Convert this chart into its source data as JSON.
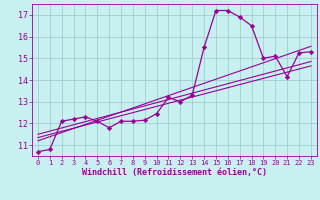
{
  "background_color": "#c8f0f0",
  "grid_color": "#a0cece",
  "line_color": "#990099",
  "marker_color": "#990099",
  "xlabel": "Windchill (Refroidissement éolien,°C)",
  "xlim": [
    -0.5,
    23.5
  ],
  "ylim": [
    10.5,
    17.5
  ],
  "yticks": [
    11,
    12,
    13,
    14,
    15,
    16,
    17
  ],
  "xticks": [
    0,
    1,
    2,
    3,
    4,
    5,
    6,
    7,
    8,
    9,
    10,
    11,
    12,
    13,
    14,
    15,
    16,
    17,
    18,
    19,
    20,
    21,
    22,
    23
  ],
  "curve1_x": [
    0,
    1,
    2,
    3,
    4,
    5,
    6,
    7,
    8,
    9,
    10,
    11,
    12,
    13,
    14,
    15,
    16,
    17,
    18,
    19,
    20,
    21,
    22,
    23
  ],
  "curve1_y": [
    10.7,
    10.8,
    12.1,
    12.2,
    12.3,
    12.1,
    11.8,
    12.1,
    12.1,
    12.15,
    12.45,
    13.2,
    13.0,
    13.3,
    15.5,
    17.2,
    17.2,
    16.9,
    16.5,
    15.0,
    15.1,
    14.15,
    15.25,
    15.3
  ],
  "line1_x": [
    0,
    23
  ],
  "line1_y": [
    11.2,
    15.55
  ],
  "line2_x": [
    0,
    23
  ],
  "line2_y": [
    11.5,
    14.85
  ],
  "line3_x": [
    0,
    23
  ],
  "line3_y": [
    11.35,
    14.65
  ],
  "font_size_ticks": 5,
  "font_size_xlabel": 6
}
